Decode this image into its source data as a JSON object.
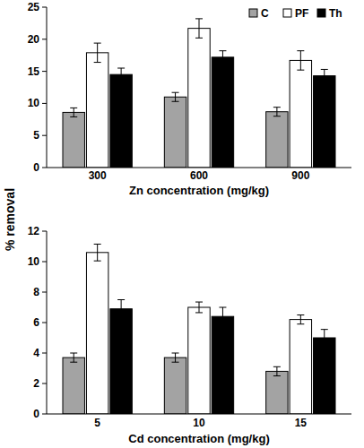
{
  "chart_data": [
    {
      "type": "bar",
      "ylabel": "% removal",
      "xlabel": "Zn concentration (mg/kg)",
      "categories": [
        "300",
        "600",
        "900"
      ],
      "series": [
        {
          "name": "C",
          "color": "#a3a3a3",
          "values": [
            8.6,
            11.0,
            8.7
          ],
          "errors": [
            0.7,
            0.7,
            0.7
          ]
        },
        {
          "name": "PF",
          "color": "#ffffff",
          "values": [
            17.9,
            21.7,
            16.7
          ],
          "errors": [
            1.5,
            1.5,
            1.5
          ]
        },
        {
          "name": "Th",
          "color": "#000000",
          "values": [
            14.5,
            17.2,
            14.3
          ],
          "errors": [
            1.0,
            1.0,
            1.0
          ]
        }
      ],
      "ylim": [
        0,
        25
      ],
      "yticks": [
        0,
        5,
        10,
        15,
        20,
        25
      ],
      "legend": "top-right"
    },
    {
      "type": "bar",
      "xlabel": "Cd concentration (mg/kg)",
      "categories": [
        "5",
        "10",
        "15"
      ],
      "series": [
        {
          "name": "C",
          "color": "#a3a3a3",
          "values": [
            3.7,
            3.7,
            2.8
          ],
          "errors": [
            0.3,
            0.3,
            0.3
          ]
        },
        {
          "name": "PF",
          "color": "#ffffff",
          "values": [
            10.6,
            7.0,
            6.2
          ],
          "errors": [
            0.55,
            0.35,
            0.3
          ]
        },
        {
          "name": "Th",
          "color": "#000000",
          "values": [
            6.9,
            6.4,
            5.0
          ],
          "errors": [
            0.6,
            0.6,
            0.55
          ]
        }
      ],
      "ylim": [
        0,
        12
      ],
      "yticks": [
        0,
        2,
        4,
        6,
        8,
        10,
        12
      ]
    }
  ]
}
